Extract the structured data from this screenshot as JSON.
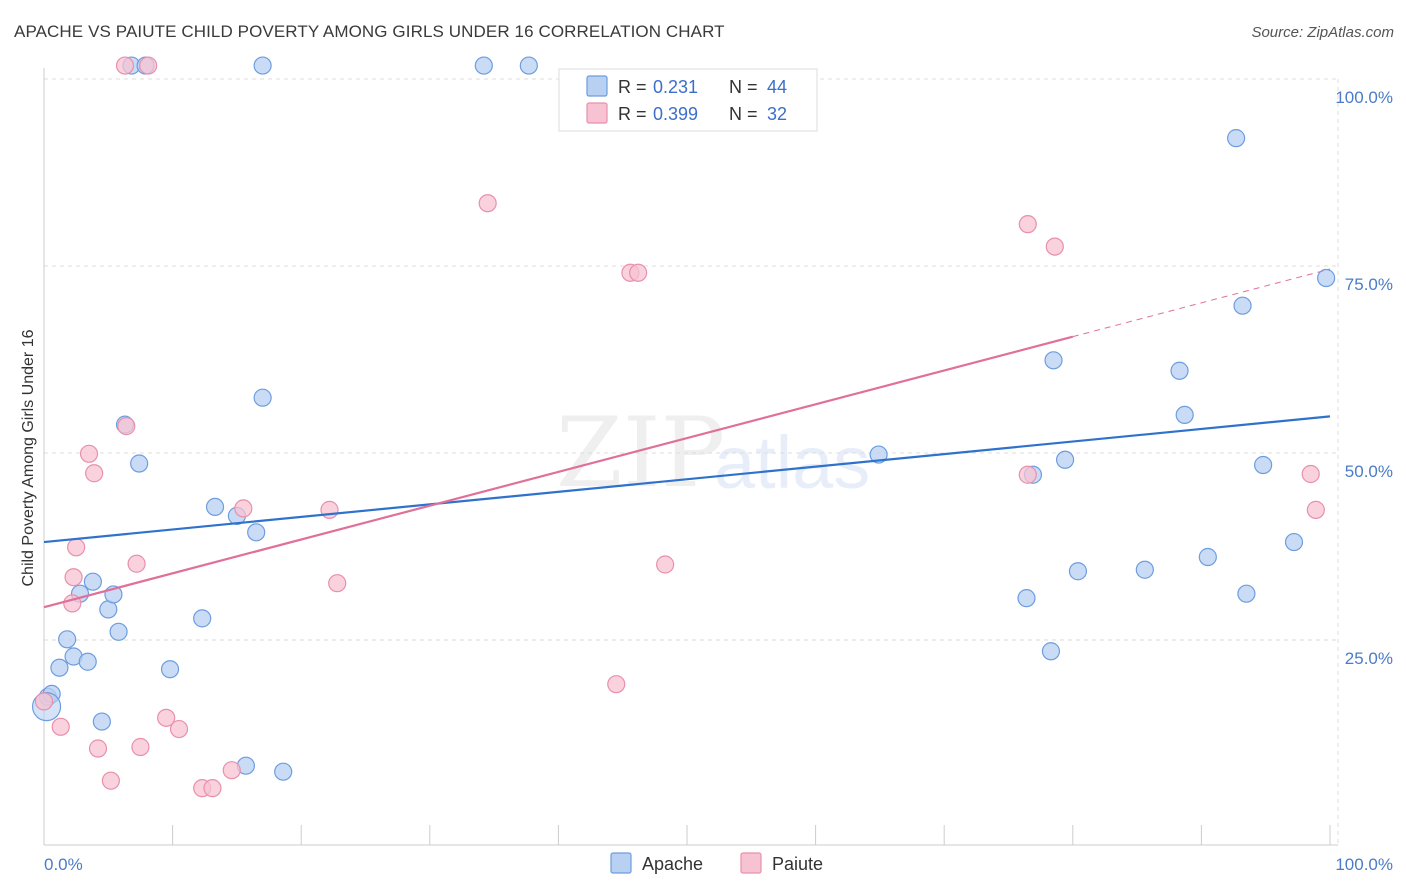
{
  "title": "APACHE VS PAIUTE CHILD POVERTY AMONG GIRLS UNDER 16 CORRELATION CHART",
  "source": "Source: ZipAtlas.com",
  "watermark": {
    "zip": "ZIP",
    "atlas": "atlas"
  },
  "colors": {
    "apache_fill": "#b8d0f2",
    "apache_stroke": "#6d9de0",
    "apache_line": "#2f72cc",
    "paiute_fill": "#f7c3d2",
    "paiute_stroke": "#e890ac",
    "paiute_line": "#e0709a",
    "grid": "#dcdcdc",
    "tick_label": "#4a7cc8"
  },
  "legend": {
    "series": [
      {
        "r_label": "R =",
        "r_value": "0.231",
        "n_label": "N =",
        "n_value": "44"
      },
      {
        "r_label": "R =",
        "r_value": "0.399",
        "n_label": "N =",
        "n_value": "32"
      }
    ]
  },
  "bottom_legend": [
    "Apache",
    "Paiute"
  ],
  "chart_data": {
    "type": "scatter",
    "title": "APACHE VS PAIUTE CHILD POVERTY AMONG GIRLS UNDER 16 CORRELATION CHART",
    "xlabel": "",
    "ylabel": "Child Poverty Among Girls Under 16",
    "xlim": [
      0,
      100
    ],
    "ylim": [
      0,
      100
    ],
    "x_tick_labels": [
      "0.0%",
      "100.0%"
    ],
    "y_tick_values": [
      25,
      50,
      75,
      100
    ],
    "y_tick_labels": [
      "25.0%",
      "50.0%",
      "75.0%",
      "100.0%"
    ],
    "grid": true,
    "series": [
      {
        "name": "Apache",
        "r": 0.231,
        "n": 44,
        "trend": {
          "x0": 0,
          "y0": 40.5,
          "x1": 100,
          "y1": 57.3
        },
        "points": [
          [
            0.3,
            19.8
          ],
          [
            0.6,
            20.2
          ],
          [
            1.2,
            23.7
          ],
          [
            1.8,
            27.5
          ],
          [
            2.3,
            25.2
          ],
          [
            2.8,
            33.6
          ],
          [
            3.4,
            24.5
          ],
          [
            3.8,
            35.2
          ],
          [
            4.5,
            16.5
          ],
          [
            5.0,
            31.5
          ],
          [
            5.4,
            33.5
          ],
          [
            5.8,
            28.5
          ],
          [
            6.3,
            56.2
          ],
          [
            7.4,
            51.0
          ],
          [
            9.8,
            23.5
          ],
          [
            12.3,
            30.3
          ],
          [
            13.3,
            45.2
          ],
          [
            15.0,
            44.0
          ],
          [
            16.5,
            41.8
          ],
          [
            17.0,
            59.8
          ],
          [
            15.7,
            10.6
          ],
          [
            18.6,
            9.8
          ],
          [
            6.8,
            104.2
          ],
          [
            7.9,
            104.2
          ],
          [
            17.0,
            104.2
          ],
          [
            34.2,
            104.2
          ],
          [
            37.7,
            104.2
          ],
          [
            64.9,
            52.2
          ],
          [
            76.9,
            49.5
          ],
          [
            78.5,
            64.8
          ],
          [
            79.4,
            51.5
          ],
          [
            80.4,
            36.6
          ],
          [
            85.6,
            36.8
          ],
          [
            88.3,
            63.4
          ],
          [
            88.7,
            57.5
          ],
          [
            90.5,
            38.5
          ],
          [
            92.7,
            94.5
          ],
          [
            93.2,
            72.1
          ],
          [
            93.5,
            33.6
          ],
          [
            94.8,
            50.8
          ],
          [
            97.2,
            40.5
          ],
          [
            99.7,
            75.8
          ],
          [
            78.3,
            25.9
          ],
          [
            76.4,
            33.0
          ]
        ]
      },
      {
        "name": "Paiute",
        "r": 0.399,
        "n": 32,
        "trend": {
          "x0": 0,
          "y0": 31.8,
          "x1": 100,
          "y1": 77.0,
          "solid_to_x": 80
        },
        "points": [
          [
            0.0,
            19.2
          ],
          [
            1.3,
            15.8
          ],
          [
            2.2,
            32.3
          ],
          [
            2.3,
            35.8
          ],
          [
            2.5,
            39.8
          ],
          [
            3.5,
            52.3
          ],
          [
            3.9,
            49.7
          ],
          [
            4.2,
            12.9
          ],
          [
            5.2,
            8.6
          ],
          [
            6.4,
            56.0
          ],
          [
            6.3,
            104.2
          ],
          [
            8.1,
            104.2
          ],
          [
            7.2,
            37.6
          ],
          [
            7.5,
            13.1
          ],
          [
            9.5,
            17.0
          ],
          [
            10.5,
            15.5
          ],
          [
            12.3,
            7.6
          ],
          [
            13.1,
            7.6
          ],
          [
            14.6,
            10.0
          ],
          [
            15.5,
            45.0
          ],
          [
            22.2,
            44.8
          ],
          [
            22.8,
            35.0
          ],
          [
            34.5,
            85.8
          ],
          [
            45.6,
            76.5
          ],
          [
            46.2,
            76.5
          ],
          [
            44.5,
            21.5
          ],
          [
            48.3,
            37.5
          ],
          [
            76.5,
            49.5
          ],
          [
            76.5,
            83.0
          ],
          [
            78.6,
            80.0
          ],
          [
            98.5,
            49.6
          ],
          [
            98.9,
            44.8
          ]
        ]
      }
    ]
  }
}
